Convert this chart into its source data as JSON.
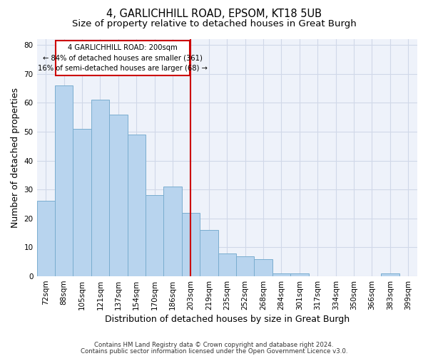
{
  "title_line1": "4, GARLICHHILL ROAD, EPSOM, KT18 5UB",
  "title_line2": "Size of property relative to detached houses in Great Burgh",
  "xlabel": "Distribution of detached houses by size in Great Burgh",
  "ylabel": "Number of detached properties",
  "categories": [
    "72sqm",
    "88sqm",
    "105sqm",
    "121sqm",
    "137sqm",
    "154sqm",
    "170sqm",
    "186sqm",
    "203sqm",
    "219sqm",
    "235sqm",
    "252sqm",
    "268sqm",
    "284sqm",
    "301sqm",
    "317sqm",
    "334sqm",
    "350sqm",
    "366sqm",
    "383sqm",
    "399sqm"
  ],
  "values": [
    26,
    66,
    51,
    61,
    56,
    49,
    28,
    31,
    22,
    16,
    8,
    7,
    6,
    1,
    1,
    0,
    0,
    0,
    0,
    1,
    0
  ],
  "bar_color": "#b8d4ee",
  "bar_edge_color": "#7aadcf",
  "highlight_index": 8,
  "highlight_color": "#cc0000",
  "annotation_line1": "4 GARLICHHILL ROAD: 200sqm",
  "annotation_line2": "← 84% of detached houses are smaller (361)",
  "annotation_line3": "16% of semi-detached houses are larger (68) →",
  "annotation_box_color": "#cc0000",
  "footer_line1": "Contains HM Land Registry data © Crown copyright and database right 2024.",
  "footer_line2": "Contains public sector information licensed under the Open Government Licence v3.0.",
  "ylim": [
    0,
    82
  ],
  "yticks": [
    0,
    10,
    20,
    30,
    40,
    50,
    60,
    70,
    80
  ],
  "grid_color": "#d0d8e8",
  "bg_color": "#ffffff",
  "plot_bg_color": "#eef2fa",
  "title_fontsize": 10.5,
  "subtitle_fontsize": 9.5,
  "axis_label_fontsize": 9,
  "tick_fontsize": 7.5,
  "footer_fontsize": 6.2
}
